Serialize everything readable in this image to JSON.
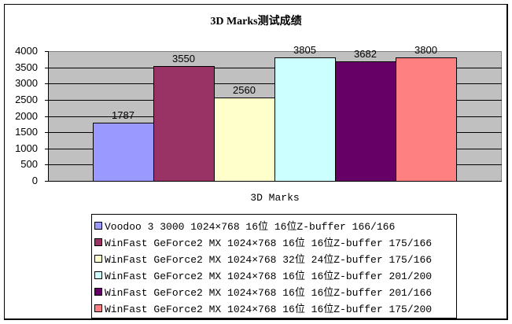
{
  "chart_data": {
    "type": "bar",
    "title": "3D Marks测试成绩",
    "xlabel": "3D Marks",
    "ylabel": "",
    "ylim": [
      0,
      4000
    ],
    "yticks": [
      0,
      500,
      1000,
      1500,
      2000,
      2500,
      3000,
      3500,
      4000
    ],
    "grid": true,
    "legend_position": "bottom",
    "categories": [
      "3D Marks"
    ],
    "series": [
      {
        "name": "Voodoo 3 3000 1024×768 16位 16位Z-buffer 166/166",
        "values": [
          1787
        ],
        "color": "#9999ff"
      },
      {
        "name": "WinFast GeForce2 MX 1024×768 16位 16位Z-buffer 175/166",
        "values": [
          3550
        ],
        "color": "#993366"
      },
      {
        "name": "WinFast GeForce2 MX 1024×768 32位 24位Z-buffer 175/166",
        "values": [
          2560
        ],
        "color": "#ffffcc"
      },
      {
        "name": "WinFast GeForce2 MX 1024×768 16位 16位Z-buffer 201/200",
        "values": [
          3805
        ],
        "color": "#ccffff"
      },
      {
        "name": "WinFast GeForce2 MX 1024×768 16位 16位Z-buffer 201/166",
        "values": [
          3682
        ],
        "color": "#660066"
      },
      {
        "name": "WinFast GeForce2 MX 1024×768 16位 16位Z-buffer 175/200",
        "values": [
          3800
        ],
        "color": "#ff8080"
      }
    ],
    "data_labels": [
      "1787",
      "3550",
      "2560",
      "3805",
      "3682",
      "3800"
    ],
    "plot_background": "#c0c0c0"
  },
  "ytick_labels": [
    "0",
    "500",
    "1000",
    "1500",
    "2000",
    "2500",
    "3000",
    "3500",
    "4000"
  ]
}
